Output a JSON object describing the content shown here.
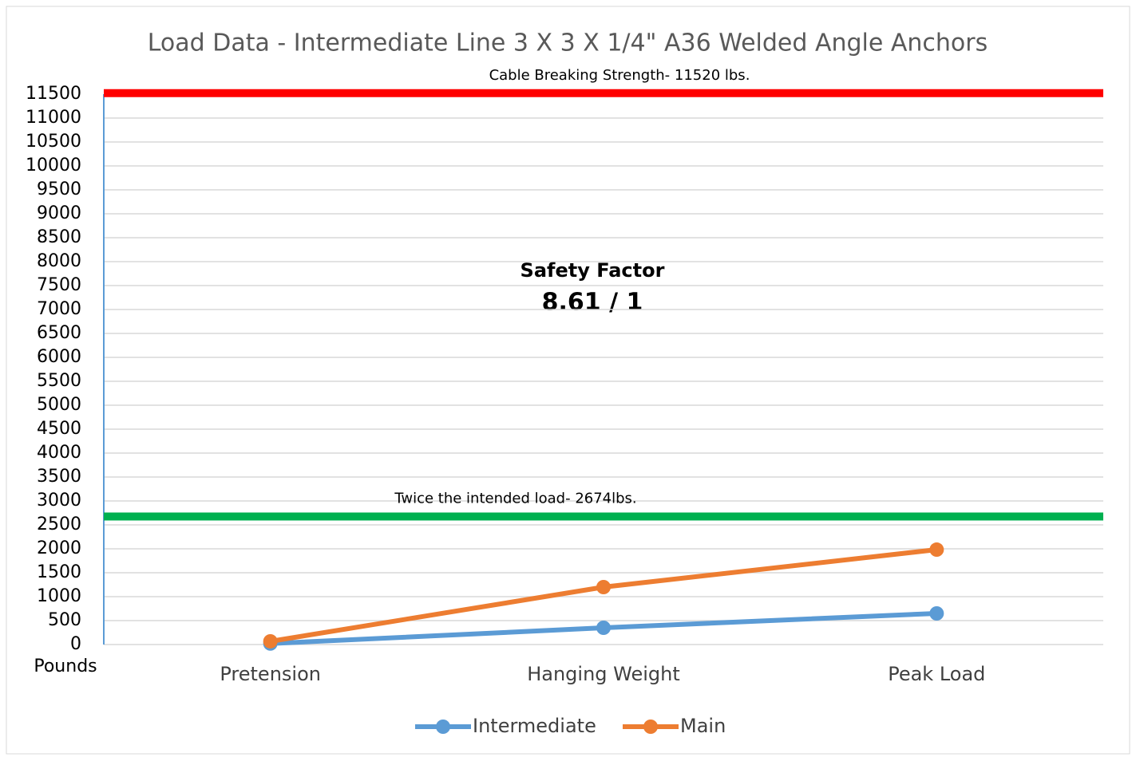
{
  "chart_data": {
    "type": "line",
    "title": "Load Data - Intermediate Line 3 X 3 X 1/4\" A36 Welded Angle Anchors",
    "y_label": "Pounds",
    "categories": [
      "Pretension",
      "Hanging Weight",
      "Peak Load"
    ],
    "series": [
      {
        "name": "Intermediate",
        "color": "#5b9bd5",
        "values": [
          20,
          350,
          650
        ]
      },
      {
        "name": "Main",
        "color": "#ed7d31",
        "values": [
          67,
          1200,
          1983
        ]
      }
    ],
    "reference_lines": [
      {
        "value": 11520,
        "label": "Cable Breaking Strength- 11520 lbs.",
        "color": "#ff0000"
      },
      {
        "value": 2674,
        "label": "Twice the intended load- 2674lbs.",
        "color": "#00b050"
      }
    ],
    "annotations": [
      "Safety Factor",
      "8.61 / 1"
    ],
    "ylim": [
      0,
      11500
    ],
    "yticks": [
      0,
      500,
      1000,
      1500,
      2000,
      2500,
      3000,
      3500,
      4000,
      4500,
      5000,
      5500,
      6000,
      6500,
      7000,
      7500,
      8000,
      8500,
      9000,
      9500,
      10000,
      10500,
      11000,
      11500
    ],
    "grid": true,
    "legend": "bottom"
  }
}
